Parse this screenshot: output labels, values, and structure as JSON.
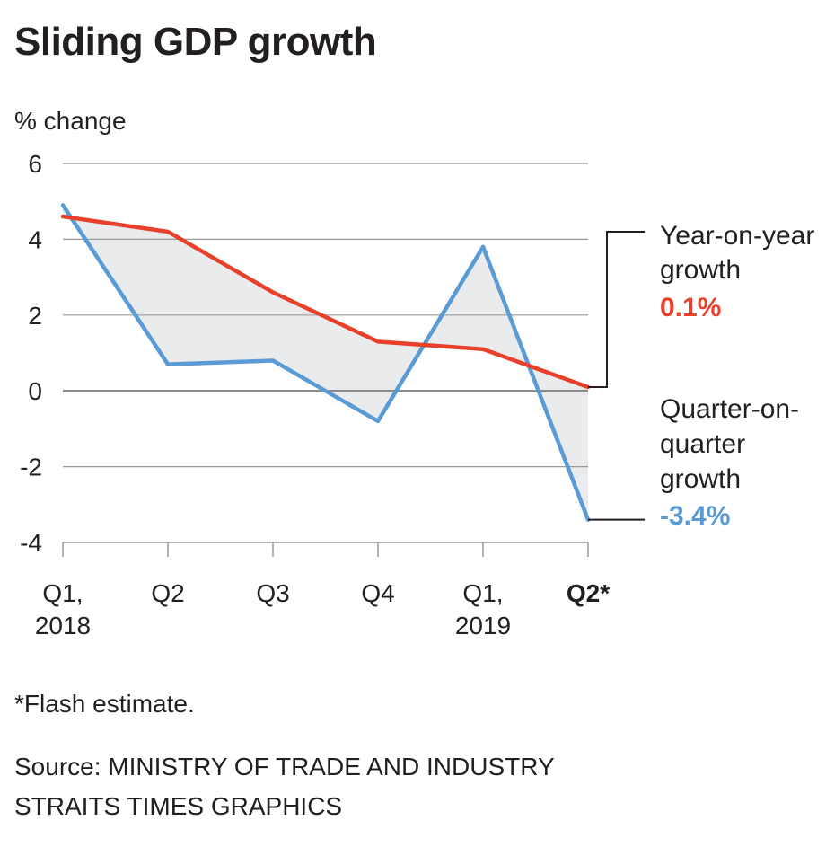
{
  "chart_data": {
    "type": "line",
    "title": "Sliding GDP growth",
    "ylabel": "% change",
    "xlabel": "",
    "ylim": [
      -4,
      6
    ],
    "yticks": [
      6,
      4,
      2,
      0,
      -2,
      -4
    ],
    "grid": true,
    "categories": [
      "Q1, 2018",
      "Q2",
      "Q3",
      "Q4",
      "Q1, 2019",
      "Q2*"
    ],
    "x_tick_labels": [
      {
        "lines": [
          "Q1,",
          "2018"
        ],
        "bold": false
      },
      {
        "lines": [
          "Q2"
        ],
        "bold": false
      },
      {
        "lines": [
          "Q3"
        ],
        "bold": false
      },
      {
        "lines": [
          "Q4"
        ],
        "bold": false
      },
      {
        "lines": [
          "Q1,",
          "2019"
        ],
        "bold": false
      },
      {
        "lines": [
          "Q2*"
        ],
        "bold": true
      }
    ],
    "series": [
      {
        "name": "Year-on-year growth",
        "label_lines": [
          "Year-on-year",
          "growth"
        ],
        "end_label": "0.1%",
        "color": "#e8402a",
        "values": [
          4.6,
          4.2,
          2.6,
          1.3,
          1.1,
          0.1
        ]
      },
      {
        "name": "Quarter-on-quarter growth",
        "label_lines": [
          "Quarter-on-",
          "quarter",
          "growth"
        ],
        "end_label": "-3.4%",
        "color": "#5b9bd5",
        "values": [
          4.9,
          0.7,
          0.8,
          -0.8,
          3.8,
          -3.4
        ]
      }
    ],
    "fill_color": "#e9ebed",
    "grid_color": "#9a9a9a",
    "zero_line_color": "#8a8a8a"
  },
  "footnote": "*Flash estimate.",
  "source": "Source: MINISTRY OF TRADE AND INDUSTRY",
  "credit": "STRAITS TIMES GRAPHICS"
}
